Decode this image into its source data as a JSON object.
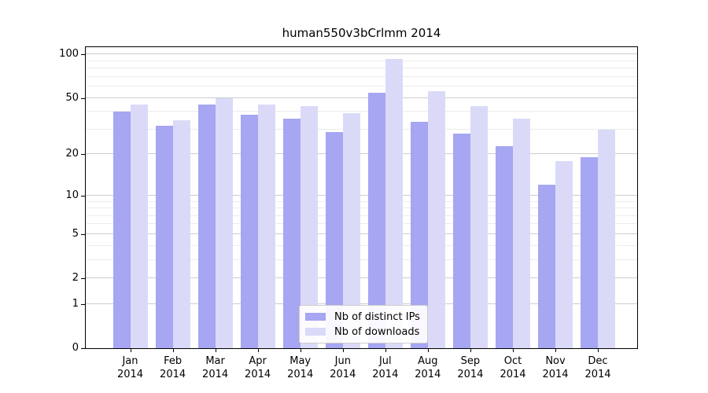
{
  "chart_data": {
    "type": "bar",
    "title": "human550v3bCrlmm 2014",
    "categories": [
      "Jan",
      "Feb",
      "Mar",
      "Apr",
      "May",
      "Jun",
      "Jul",
      "Aug",
      "Sep",
      "Oct",
      "Nov",
      "Dec"
    ],
    "x_tick_year": "2014",
    "series": [
      {
        "name": "Nb of distinct IPs",
        "color": "#a6a6f2",
        "values": [
          40,
          32,
          45,
          38,
          36,
          29,
          54,
          34,
          28,
          23,
          12,
          19
        ]
      },
      {
        "name": "Nb of downloads",
        "color": "#dadaf8",
        "values": [
          45,
          35,
          50,
          45,
          44,
          39,
          93,
          56,
          44,
          36,
          18,
          30
        ]
      }
    ],
    "y_ticks": [
      0,
      1,
      2,
      5,
      10,
      20,
      50,
      100
    ],
    "y_minor_ticks": [
      3,
      4,
      6,
      7,
      8,
      9,
      30,
      40,
      60,
      70,
      80,
      90
    ],
    "scale": "log1p",
    "ylim": [
      0,
      114
    ],
    "grid": true,
    "legend_position": "lower center",
    "colors": {
      "major_grid": "#cdcdcd",
      "minor_grid": "#ececec",
      "axis": "#000000",
      "background": "#ffffff"
    }
  }
}
